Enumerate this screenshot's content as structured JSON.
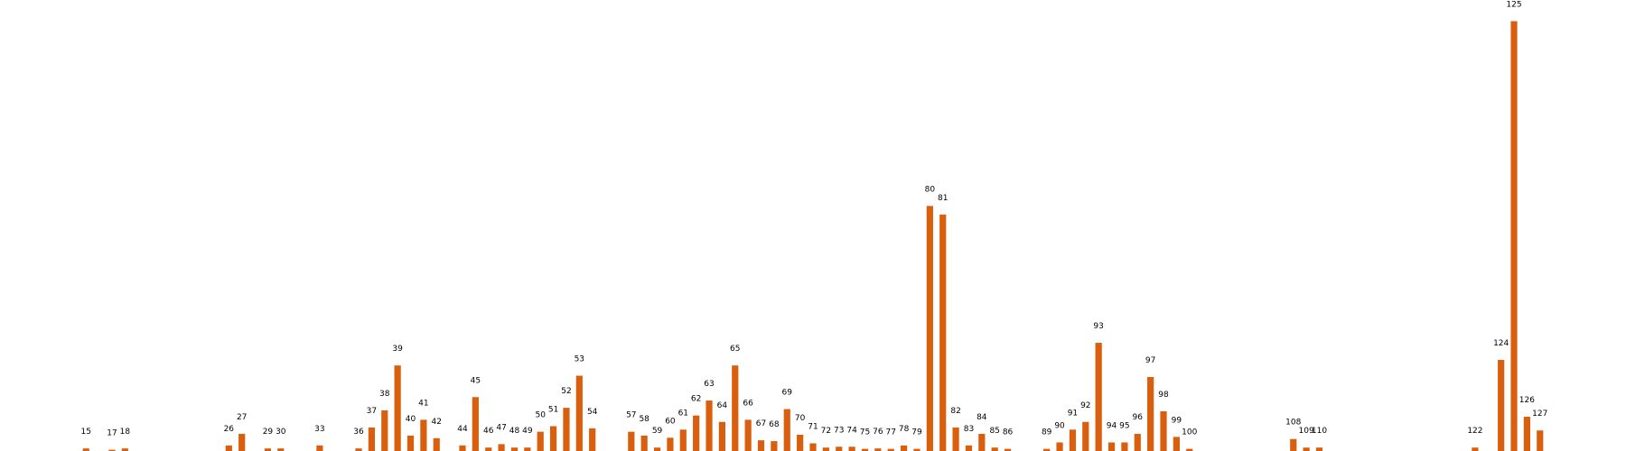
{
  "chart_data": {
    "type": "bar",
    "title": "",
    "xlabel": "",
    "ylabel": "",
    "bar_color": "#D95F0E",
    "grid": false,
    "axes_visible": false,
    "label_position": "above-bars",
    "categories": [
      "15",
      "17",
      "18",
      "26",
      "27",
      "29",
      "30",
      "33",
      "36",
      "37",
      "38",
      "39",
      "40",
      "41",
      "42",
      "44",
      "45",
      "46",
      "47",
      "48",
      "49",
      "50",
      "51",
      "52",
      "53",
      "54",
      "57",
      "58",
      "59",
      "60",
      "61",
      "62",
      "63",
      "64",
      "65",
      "66",
      "67",
      "68",
      "69",
      "70",
      "71",
      "72",
      "73",
      "74",
      "75",
      "76",
      "77",
      "78",
      "79",
      "80",
      "81",
      "82",
      "83",
      "84",
      "85",
      "86",
      "89",
      "90",
      "91",
      "92",
      "93",
      "94",
      "95",
      "96",
      "97",
      "98",
      "99",
      "100",
      "108",
      "109",
      "110",
      "122",
      "124",
      "125",
      "126",
      "127"
    ],
    "x": [
      15,
      17,
      18,
      26,
      27,
      29,
      30,
      33,
      36,
      37,
      38,
      39,
      40,
      41,
      42,
      44,
      45,
      46,
      47,
      48,
      49,
      50,
      51,
      52,
      53,
      54,
      57,
      58,
      59,
      60,
      61,
      62,
      63,
      64,
      65,
      66,
      67,
      68,
      69,
      70,
      71,
      72,
      73,
      74,
      75,
      76,
      77,
      78,
      79,
      80,
      81,
      82,
      83,
      84,
      85,
      86,
      89,
      90,
      91,
      92,
      93,
      94,
      95,
      96,
      97,
      98,
      99,
      100,
      108,
      109,
      110,
      122,
      124,
      125,
      126,
      127
    ],
    "values": [
      0.6,
      0.3,
      0.6,
      1.3,
      4.0,
      0.6,
      0.6,
      1.3,
      0.6,
      5.5,
      9.5,
      20.0,
      3.6,
      7.3,
      3.0,
      1.3,
      12.6,
      0.8,
      1.6,
      0.8,
      0.8,
      4.5,
      5.8,
      10.1,
      17.6,
      5.3,
      4.5,
      3.6,
      0.8,
      3.1,
      5.0,
      8.3,
      11.8,
      6.8,
      20.0,
      7.3,
      2.5,
      2.3,
      9.8,
      3.8,
      1.8,
      0.8,
      1.0,
      1.0,
      0.5,
      0.6,
      0.5,
      1.3,
      0.5,
      57.3,
      55.3,
      5.5,
      1.3,
      4.0,
      0.8,
      0.5,
      0.5,
      2.0,
      5.0,
      6.8,
      25.3,
      2.0,
      2.0,
      4.0,
      17.3,
      9.3,
      3.3,
      0.5,
      2.8,
      0.8,
      0.8,
      0.8,
      21.3,
      100.5,
      8.0,
      4.8
    ],
    "xlim": [
      9,
      133
    ],
    "ylim": [
      0,
      100.5
    ]
  }
}
